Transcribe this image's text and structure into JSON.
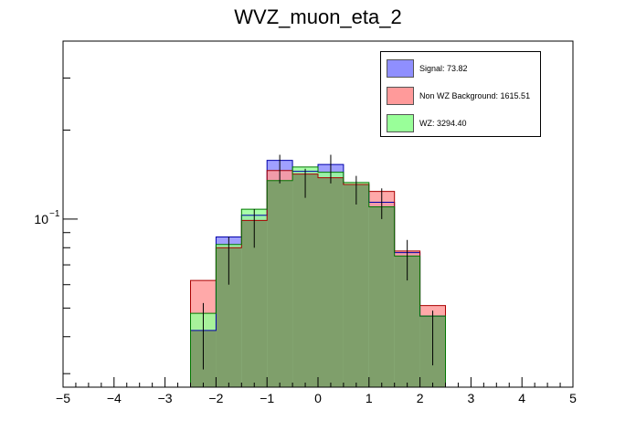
{
  "chart_data": {
    "type": "bar",
    "title": "WVZ_muon_eta_2",
    "xlim": [
      -5,
      5
    ],
    "ylog": true,
    "ylim": [
      0.027,
      0.4
    ],
    "x_ticks": [
      "−5",
      "−4",
      "−3",
      "−2",
      "−1",
      "0",
      "1",
      "2",
      "3",
      "4",
      "5"
    ],
    "y_tick_label": "10",
    "y_tick_exponent": "−1",
    "bin_edges": [
      -2.5,
      -2.0,
      -1.5,
      -1.0,
      -0.5,
      0.0,
      0.5,
      1.0,
      1.5,
      2.0,
      2.5
    ],
    "series": [
      {
        "name": "Signal: 73.82",
        "color": "#8f8fff",
        "values": [
          0.042,
          0.087,
          0.103,
          0.158,
          0.145,
          0.153,
          0.131,
          0.114,
          0.077,
          0.047
        ]
      },
      {
        "name": "Non WZ Background: 1615.51",
        "color": "#ff9a9a",
        "values": [
          0.062,
          0.08,
          0.099,
          0.146,
          0.142,
          0.138,
          0.131,
          0.124,
          0.078,
          0.051
        ]
      },
      {
        "name": "WZ: 3294.40",
        "color": "#99ff99",
        "values": [
          0.048,
          0.082,
          0.108,
          0.135,
          0.15,
          0.144,
          0.133,
          0.11,
          0.075,
          0.047
        ]
      }
    ],
    "overlay_color": "#7f9f6b",
    "error_points": [
      {
        "x": -2.25,
        "y": 0.04,
        "lo": 0.031,
        "hi": 0.052
      },
      {
        "x": -1.75,
        "y": 0.072,
        "lo": 0.06,
        "hi": 0.087
      },
      {
        "x": -1.25,
        "y": 0.093,
        "lo": 0.08,
        "hi": 0.108
      },
      {
        "x": -0.75,
        "y": 0.148,
        "lo": 0.132,
        "hi": 0.165
      },
      {
        "x": -0.25,
        "y": 0.132,
        "lo": 0.118,
        "hi": 0.148
      },
      {
        "x": 0.25,
        "y": 0.148,
        "lo": 0.132,
        "hi": 0.165
      },
      {
        "x": 0.75,
        "y": 0.125,
        "lo": 0.112,
        "hi": 0.14
      },
      {
        "x": 1.25,
        "y": 0.112,
        "lo": 0.1,
        "hi": 0.127
      },
      {
        "x": 1.75,
        "y": 0.072,
        "lo": 0.062,
        "hi": 0.085
      },
      {
        "x": 2.25,
        "y": 0.04,
        "lo": 0.032,
        "hi": 0.049
      }
    ]
  }
}
